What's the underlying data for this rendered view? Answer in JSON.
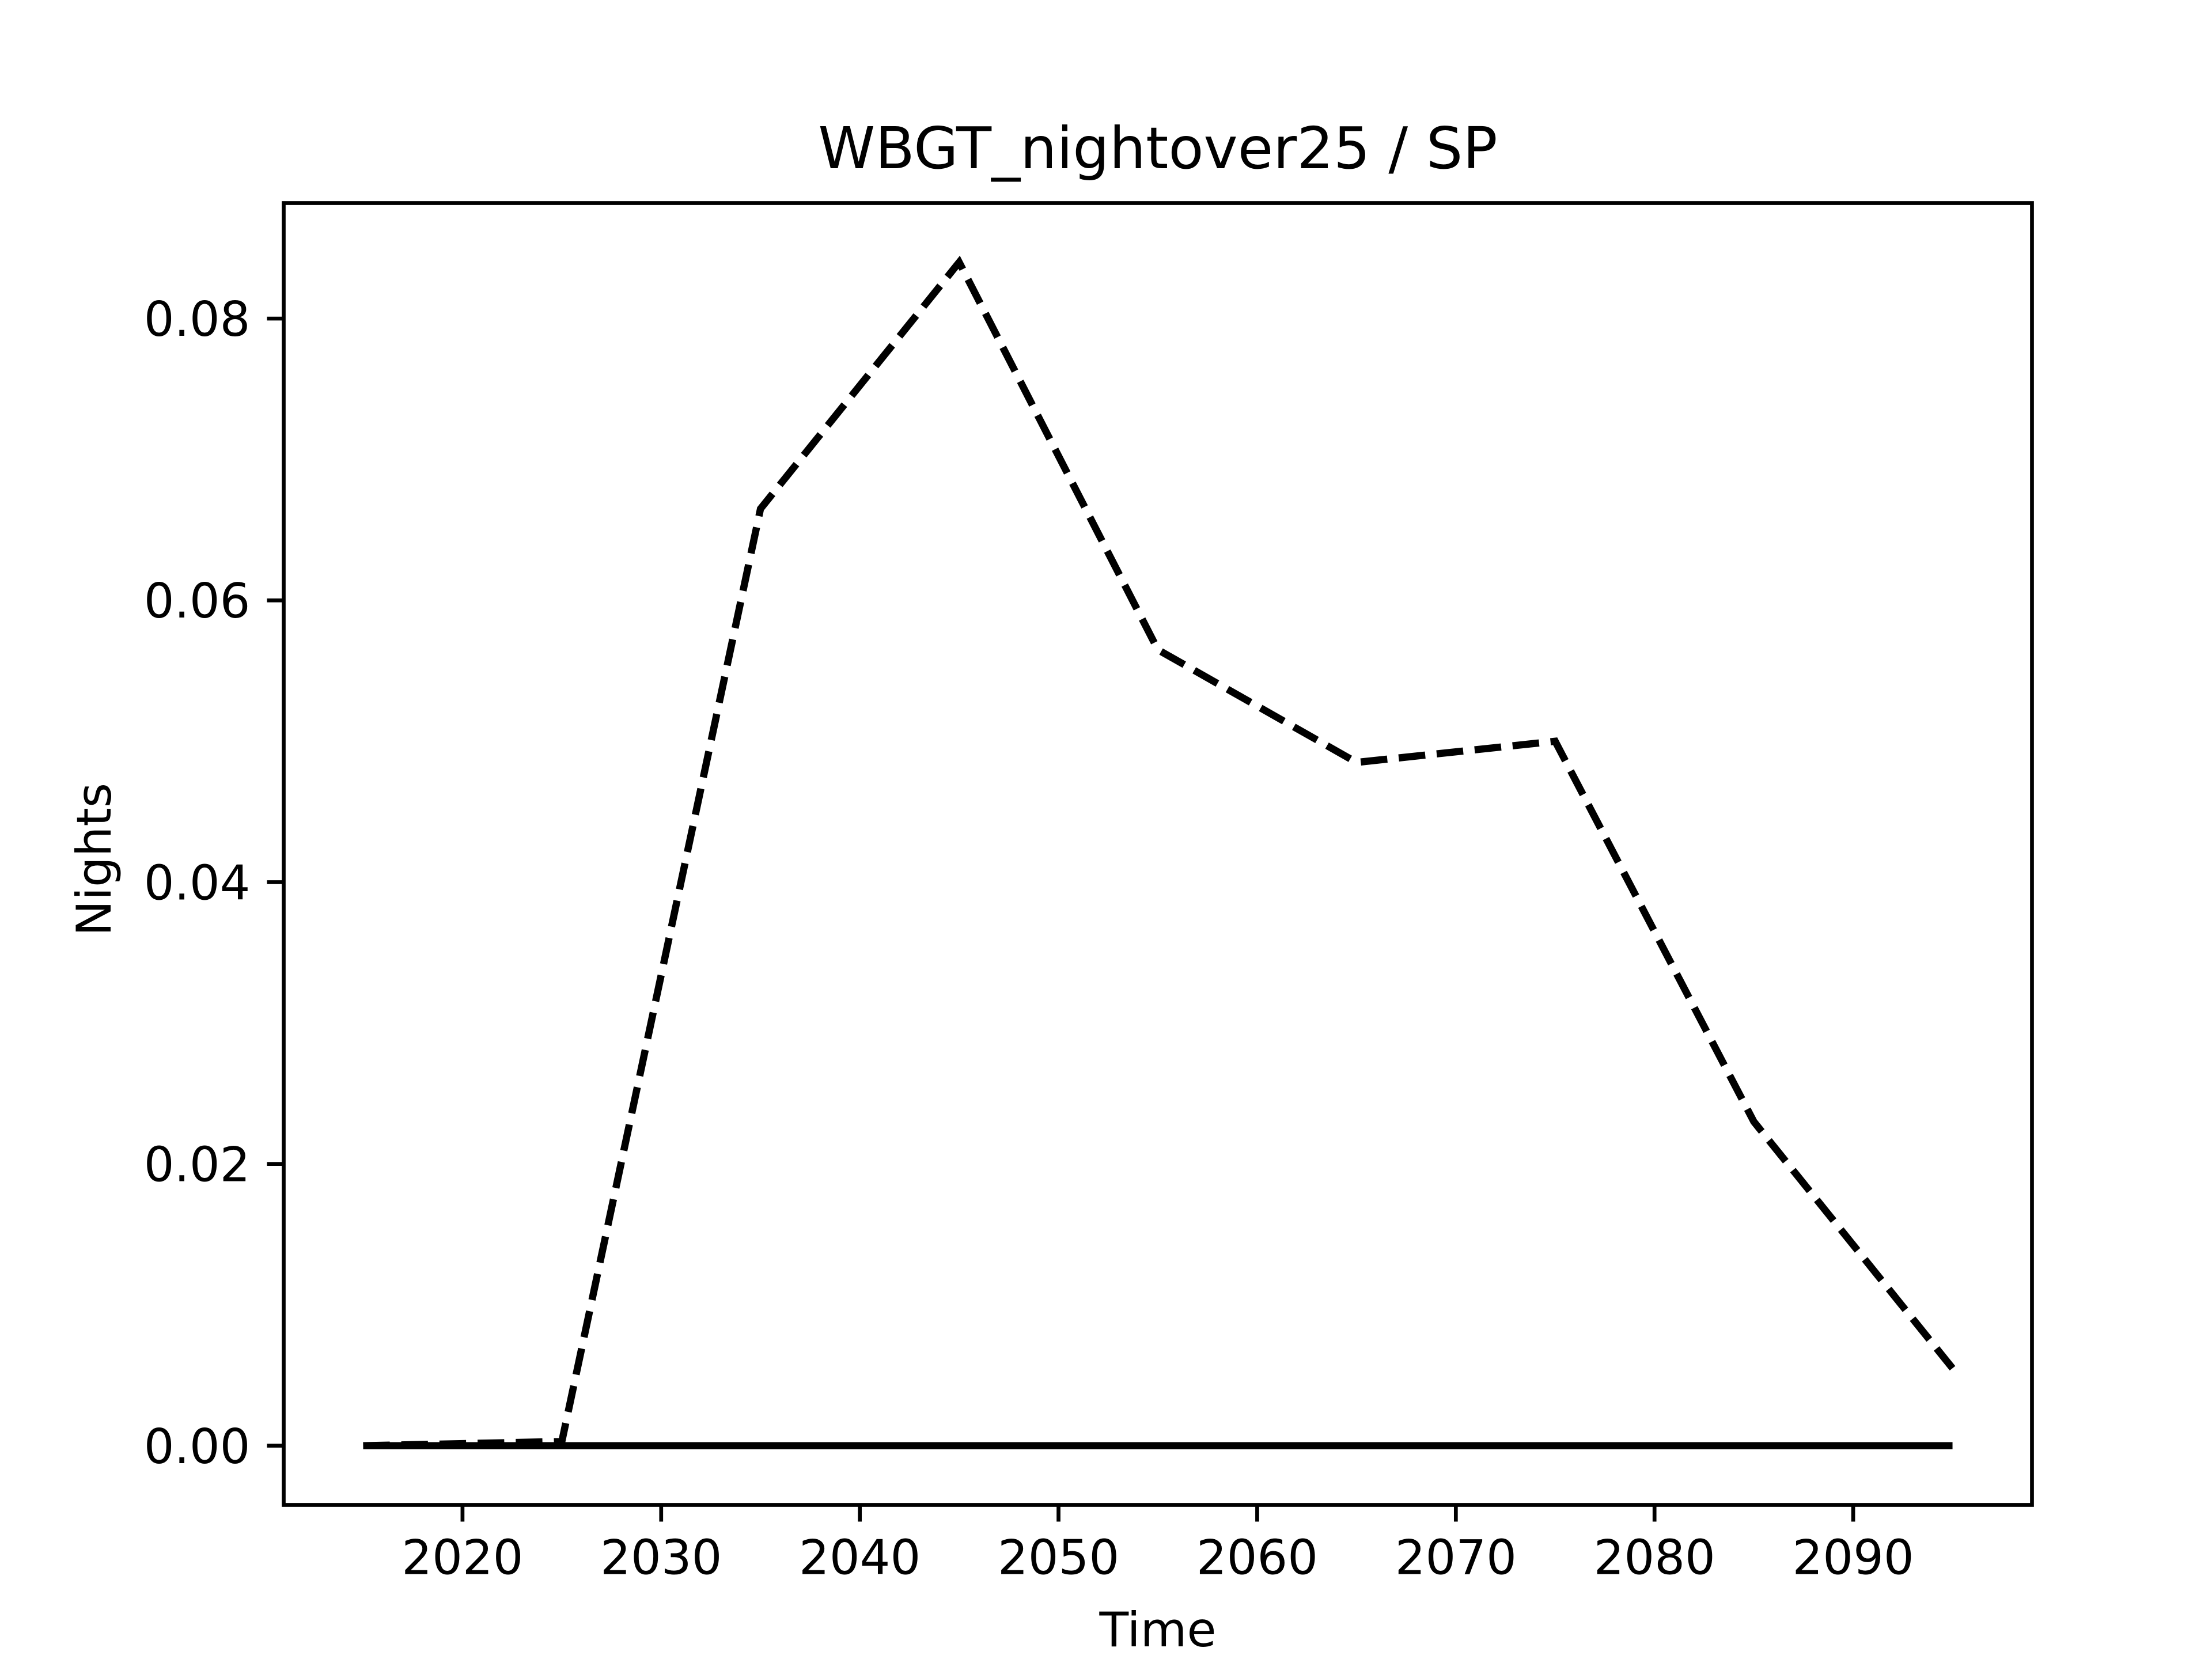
{
  "chart_data": {
    "type": "line",
    "title": "WBGT_nightover25 / SP",
    "xlabel": "Time",
    "ylabel": "Nights",
    "x": [
      2015,
      2025,
      2035,
      2045,
      2055,
      2065,
      2075,
      2085,
      2095
    ],
    "series": [
      {
        "color": "#000000",
        "linestyle": "dashed",
        "values": [
          0,
          0.0003,
          0.0665,
          0.084,
          0.0565,
          0.0485,
          0.05,
          0.023,
          0.0055
        ]
      },
      {
        "color": "#000000",
        "linestyle": "solid",
        "values": [
          0,
          0,
          0,
          0,
          0,
          0,
          0,
          0,
          0
        ]
      }
    ],
    "xlim": [
      2011,
      2099
    ],
    "xticks": [
      2020,
      2030,
      2040,
      2050,
      2060,
      2070,
      2080,
      2090
    ],
    "ylim": [
      -0.0042,
      0.0882
    ],
    "yticks": [
      {
        "value": 0,
        "label": "0.00"
      },
      0.02,
      0.04,
      0.06,
      0.08
    ],
    "grid": false
  }
}
